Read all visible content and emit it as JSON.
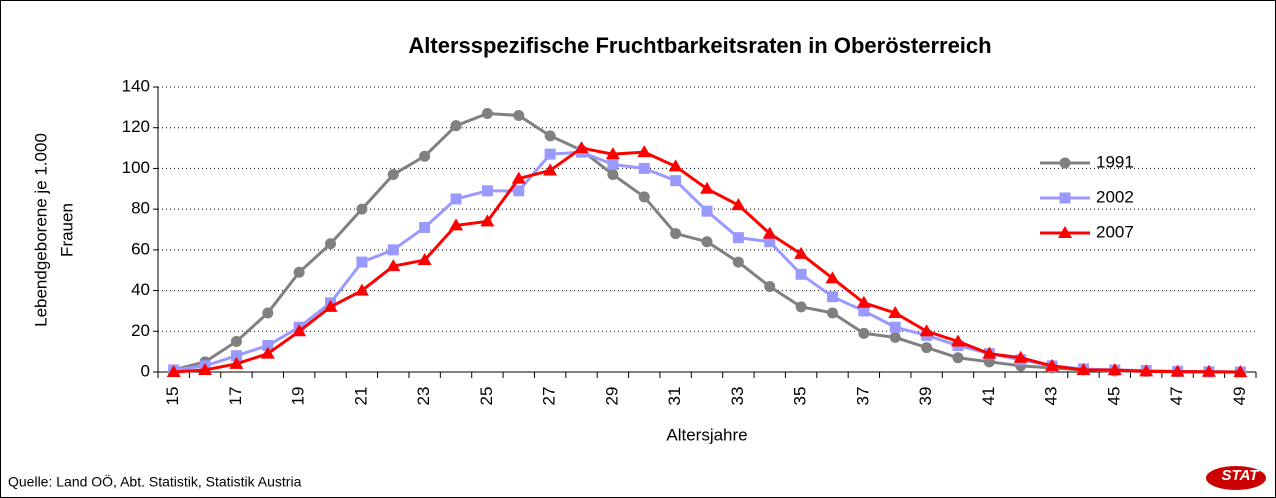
{
  "chart_data": {
    "type": "line",
    "title": "Altersspezifische Fruchtbarkeitsraten in Oberösterreich",
    "ylabel": [
      "Lebendgeborene je 1.000",
      "Frauen"
    ],
    "xlabel": "Altersjahre",
    "source": "Quelle: Land OÖ, Abt. Statistik, Statistik Austria",
    "logo": "STAT",
    "categories": [
      "15",
      null,
      "17",
      null,
      "19",
      null,
      "21",
      null,
      "23",
      null,
      "25",
      null,
      "27",
      null,
      "29",
      null,
      "31",
      null,
      "33",
      null,
      "35",
      null,
      "37",
      null,
      "39",
      null,
      "41",
      null,
      "43",
      null,
      "45",
      null,
      "47",
      null,
      "49"
    ],
    "series": [
      {
        "name": "1991",
        "color": "#808080",
        "marker": "circle",
        "values": [
          1,
          5,
          15,
          29,
          49,
          63,
          80,
          97,
          106,
          121,
          127,
          126,
          116,
          109,
          97,
          86,
          68,
          64,
          54,
          42,
          32,
          29,
          19,
          17,
          12,
          7,
          5,
          3,
          2,
          1,
          0.5,
          0.3,
          0.1,
          0,
          0
        ]
      },
      {
        "name": "2002",
        "color": "#9999ff",
        "marker": "square",
        "values": [
          1,
          3,
          8,
          13,
          22,
          34,
          54,
          60,
          71,
          85,
          89,
          89,
          107,
          108,
          102,
          100,
          94,
          79,
          66,
          64,
          48,
          37,
          30,
          22,
          18,
          13,
          9,
          6,
          3,
          1.5,
          1,
          0.7,
          0.3,
          0.1,
          0
        ]
      },
      {
        "name": "2007",
        "color": "#ff0000",
        "marker": "triangle",
        "values": [
          0,
          1,
          4,
          9,
          20,
          32,
          40,
          52,
          55,
          72,
          74,
          95,
          99,
          110,
          107,
          108,
          101,
          90,
          82,
          68,
          58,
          46,
          34,
          29,
          20,
          15,
          9,
          7,
          3,
          1,
          1,
          0.3,
          0.2,
          0.1,
          0
        ]
      }
    ],
    "ylim": [
      0,
      140
    ],
    "yticks": [
      0,
      20,
      40,
      60,
      80,
      100,
      120,
      140
    ],
    "grid": true,
    "legend": "upper right"
  }
}
